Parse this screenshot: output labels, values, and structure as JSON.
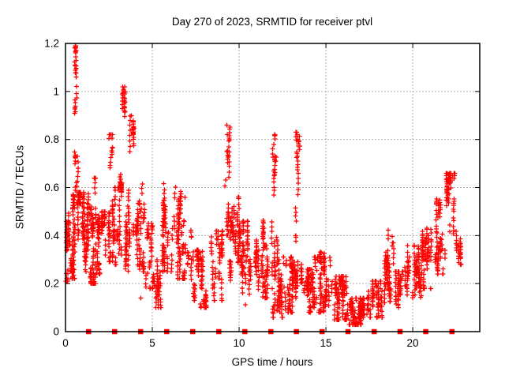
{
  "chart_data": {
    "type": "scatter",
    "title": "Day 270 of 2023, SRMTID for receiver ptvl",
    "xlabel": "GPS time / hours",
    "ylabel": "SRMTID / TECUs",
    "xlim": [
      0,
      23.86
    ],
    "ylim": [
      0,
      1.2
    ],
    "xticks": {
      "values": [
        0,
        5,
        10,
        15,
        20
      ],
      "labels": [
        "0",
        "5",
        "10",
        "15",
        "20"
      ]
    },
    "yticks": {
      "values": [
        0,
        0.2,
        0.4,
        0.6,
        0.8,
        1,
        1.2
      ],
      "labels": [
        "0",
        "0.2",
        "0.4",
        "0.6",
        "0.8",
        "1",
        "1.2"
      ]
    },
    "grid": true,
    "legend_position": "none",
    "colors": {
      "marker": "#ff0000",
      "grid": "#b0b0b0",
      "axis": "#000000",
      "background": "#ffffff"
    },
    "marker": "plus",
    "series": [
      {
        "name": "srmtid-points",
        "type": "cluster-cloud",
        "clusters": [
          {
            "x": [
              0.02,
              0.18
            ],
            "y": [
              0.21,
              0.46
            ],
            "n": 45
          },
          {
            "x": [
              0.15,
              0.55
            ],
            "y": [
              0.22,
              0.57
            ],
            "n": 85
          },
          {
            "x": [
              0.52,
              0.7
            ],
            "y": [
              0.75,
              1.19
            ],
            "n": 30,
            "skew": "top"
          },
          {
            "x": [
              0.55,
              0.72
            ],
            "y": [
              0.5,
              0.78
            ],
            "n": 20
          },
          {
            "x": [
              0.7,
              1.35
            ],
            "y": [
              0.25,
              0.58
            ],
            "n": 115
          },
          {
            "x": [
              1.35,
              1.8
            ],
            "y": [
              0.2,
              0.52
            ],
            "n": 85
          },
          {
            "x": [
              1.55,
              1.7
            ],
            "y": [
              0.54,
              0.64
            ],
            "n": 8
          },
          {
            "x": [
              1.8,
              2.6
            ],
            "y": [
              0.24,
              0.5
            ],
            "n": 110
          },
          {
            "x": [
              2.52,
              2.72
            ],
            "y": [
              0.62,
              0.82
            ],
            "n": 16,
            "skew": "top"
          },
          {
            "x": [
              2.7,
              3.12
            ],
            "y": [
              0.28,
              0.6
            ],
            "n": 60
          },
          {
            "x": [
              3.15,
              3.45
            ],
            "y": [
              0.55,
              1.02
            ],
            "n": 32,
            "skew": "top"
          },
          {
            "x": [
              3.1,
              3.7
            ],
            "y": [
              0.25,
              0.62
            ],
            "n": 85
          },
          {
            "x": [
              3.7,
              3.95
            ],
            "y": [
              0.5,
              0.92
            ],
            "n": 26,
            "skew": "top"
          },
          {
            "x": [
              3.9,
              4.6
            ],
            "y": [
              0.25,
              0.56
            ],
            "n": 75
          },
          {
            "x": [
              4.28,
              4.45
            ],
            "y": [
              0.5,
              0.65
            ],
            "n": 10
          },
          {
            "x": [
              4.6,
              5.1
            ],
            "y": [
              0.18,
              0.45
            ],
            "n": 55
          },
          {
            "x": [
              5.0,
              5.6
            ],
            "y": [
              0.1,
              0.3
            ],
            "n": 48
          },
          {
            "x": [
              5.55,
              6.2
            ],
            "y": [
              0.25,
              0.63
            ],
            "n": 75
          },
          {
            "x": [
              6.2,
              6.9
            ],
            "y": [
              0.22,
              0.62
            ],
            "n": 95
          },
          {
            "x": [
              6.9,
              7.25
            ],
            "y": [
              0.28,
              0.52
            ],
            "n": 14
          },
          {
            "x": [
              7.2,
              8.3
            ],
            "y": [
              0.1,
              0.34
            ],
            "n": 95
          },
          {
            "x": [
              8.3,
              9.05
            ],
            "y": [
              0.13,
              0.42
            ],
            "n": 75
          },
          {
            "x": [
              9.18,
              9.45
            ],
            "y": [
              0.55,
              0.87
            ],
            "n": 22,
            "skew": "top"
          },
          {
            "x": [
              9.3,
              10.0
            ],
            "y": [
              0.2,
              0.56
            ],
            "n": 95
          },
          {
            "x": [
              10.0,
              10.7
            ],
            "y": [
              0.1,
              0.46
            ],
            "n": 85
          },
          {
            "x": [
              10.7,
              11.45
            ],
            "y": [
              0.12,
              0.47
            ],
            "n": 65
          },
          {
            "x": [
              11.45,
              11.8
            ],
            "y": [
              0.14,
              0.36
            ],
            "n": 35
          },
          {
            "x": [
              11.85,
              12.12
            ],
            "y": [
              0.45,
              0.82
            ],
            "n": 24,
            "skew": "top"
          },
          {
            "x": [
              11.85,
              12.5
            ],
            "y": [
              0.06,
              0.46
            ],
            "n": 95
          },
          {
            "x": [
              12.5,
              13.1
            ],
            "y": [
              0.08,
              0.31
            ],
            "n": 70
          },
          {
            "x": [
              13.18,
              13.55
            ],
            "y": [
              0.4,
              0.83
            ],
            "n": 30,
            "skew": "top"
          },
          {
            "x": [
              13.05,
              13.6
            ],
            "y": [
              0.14,
              0.4
            ],
            "n": 50
          },
          {
            "x": [
              13.55,
              14.1
            ],
            "y": [
              0.08,
              0.26
            ],
            "n": 75
          },
          {
            "x": [
              14.1,
              14.55
            ],
            "y": [
              0.1,
              0.31
            ],
            "n": 60
          },
          {
            "x": [
              14.55,
              15.25
            ],
            "y": [
              0.08,
              0.34
            ],
            "n": 85
          },
          {
            "x": [
              15.25,
              16.2
            ],
            "y": [
              0.05,
              0.23
            ],
            "n": 115
          },
          {
            "x": [
              16.2,
              17.4
            ],
            "y": [
              0.03,
              0.14
            ],
            "n": 140
          },
          {
            "x": [
              17.4,
              18.25
            ],
            "y": [
              0.06,
              0.21
            ],
            "n": 85
          },
          {
            "x": [
              18.3,
              18.9
            ],
            "y": [
              0.12,
              0.43
            ],
            "n": 75
          },
          {
            "x": [
              18.9,
              19.55
            ],
            "y": [
              0.1,
              0.25
            ],
            "n": 65
          },
          {
            "x": [
              19.55,
              20.5
            ],
            "y": [
              0.13,
              0.36
            ],
            "n": 95
          },
          {
            "x": [
              20.5,
              21.2
            ],
            "y": [
              0.18,
              0.43
            ],
            "n": 85
          },
          {
            "x": [
              21.2,
              21.85
            ],
            "y": [
              0.24,
              0.56
            ],
            "n": 75
          },
          {
            "x": [
              21.9,
              22.45
            ],
            "y": [
              0.3,
              0.66
            ],
            "n": 65,
            "skew": "top"
          },
          {
            "x": [
              22.5,
              22.85
            ],
            "y": [
              0.28,
              0.46
            ],
            "n": 32
          }
        ],
        "outliers": [
          [
            0.6,
            1.19
          ],
          [
            0.6,
            1.18
          ],
          [
            0.62,
            1.17
          ],
          [
            0.58,
            1.16
          ],
          [
            3.3,
            1.02
          ],
          [
            3.28,
            0.99
          ],
          [
            9.3,
            0.86
          ],
          [
            9.32,
            0.82
          ],
          [
            4.35,
            0.14
          ],
          [
            12.0,
            0.78
          ],
          [
            13.35,
            0.82
          ],
          [
            13.38,
            0.8
          ],
          [
            22.3,
            0.65
          ],
          [
            2.6,
            0.82
          ],
          [
            3.8,
            0.9
          ]
        ]
      },
      {
        "name": "event-markers",
        "type": "squares",
        "y": 0,
        "x": [
          1.33,
          2.83,
          4.33,
          5.83,
          7.33,
          8.83,
          10.33,
          11.83,
          13.3,
          14.78,
          16.27,
          17.78,
          19.27,
          20.75,
          22.26
        ]
      }
    ]
  }
}
